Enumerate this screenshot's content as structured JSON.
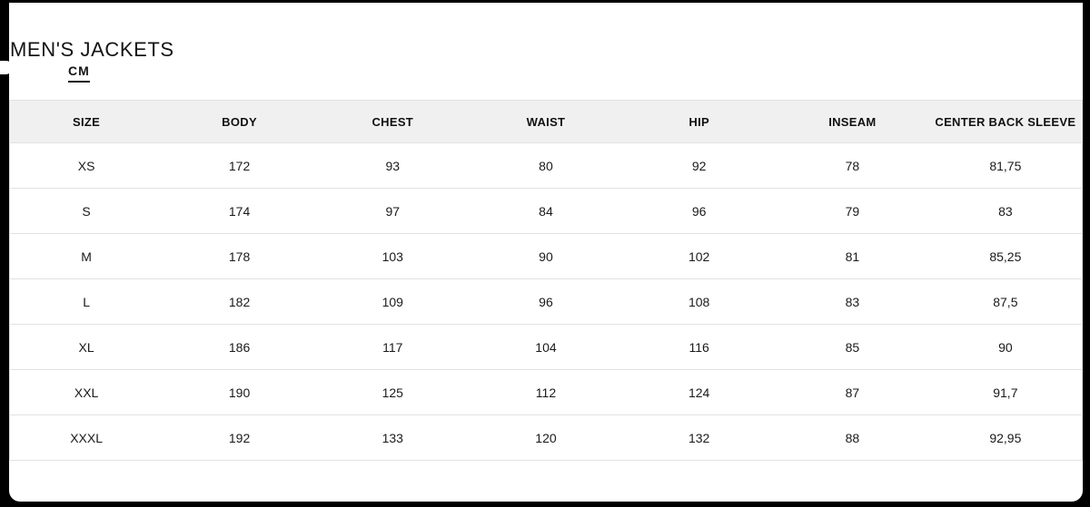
{
  "page": {
    "title": "MEN'S JACKETS"
  },
  "unit_toggle": {
    "selected_label": "CM",
    "selected": true
  },
  "size_chart": {
    "columns": [
      "SIZE",
      "BODY",
      "CHEST",
      "WAIST",
      "HIP",
      "INSEAM",
      "CENTER BACK SLEEVE"
    ],
    "rows": [
      {
        "size": "XS",
        "body": "172",
        "chest": "93",
        "waist": "80",
        "hip": "92",
        "inseam": "78",
        "center_back_sleeve": "81,75"
      },
      {
        "size": "S",
        "body": "174",
        "chest": "97",
        "waist": "84",
        "hip": "96",
        "inseam": "79",
        "center_back_sleeve": "83"
      },
      {
        "size": "M",
        "body": "178",
        "chest": "103",
        "waist": "90",
        "hip": "102",
        "inseam": "81",
        "center_back_sleeve": "85,25"
      },
      {
        "size": "L",
        "body": "182",
        "chest": "109",
        "waist": "96",
        "hip": "108",
        "inseam": "83",
        "center_back_sleeve": "87,5"
      },
      {
        "size": "XL",
        "body": "186",
        "chest": "117",
        "waist": "104",
        "hip": "116",
        "inseam": "85",
        "center_back_sleeve": "90"
      },
      {
        "size": "XXL",
        "body": "190",
        "chest": "125",
        "waist": "112",
        "hip": "124",
        "inseam": "87",
        "center_back_sleeve": "91,7"
      },
      {
        "size": "XXXL",
        "body": "192",
        "chest": "133",
        "waist": "120",
        "hip": "132",
        "inseam": "88",
        "center_back_sleeve": "92,95"
      }
    ]
  },
  "colors": {
    "frame": "#000000",
    "page_background": "#ffffff",
    "header_band": "#f0f0f0",
    "rule": "#e1e1e1",
    "text": "#141414"
  }
}
